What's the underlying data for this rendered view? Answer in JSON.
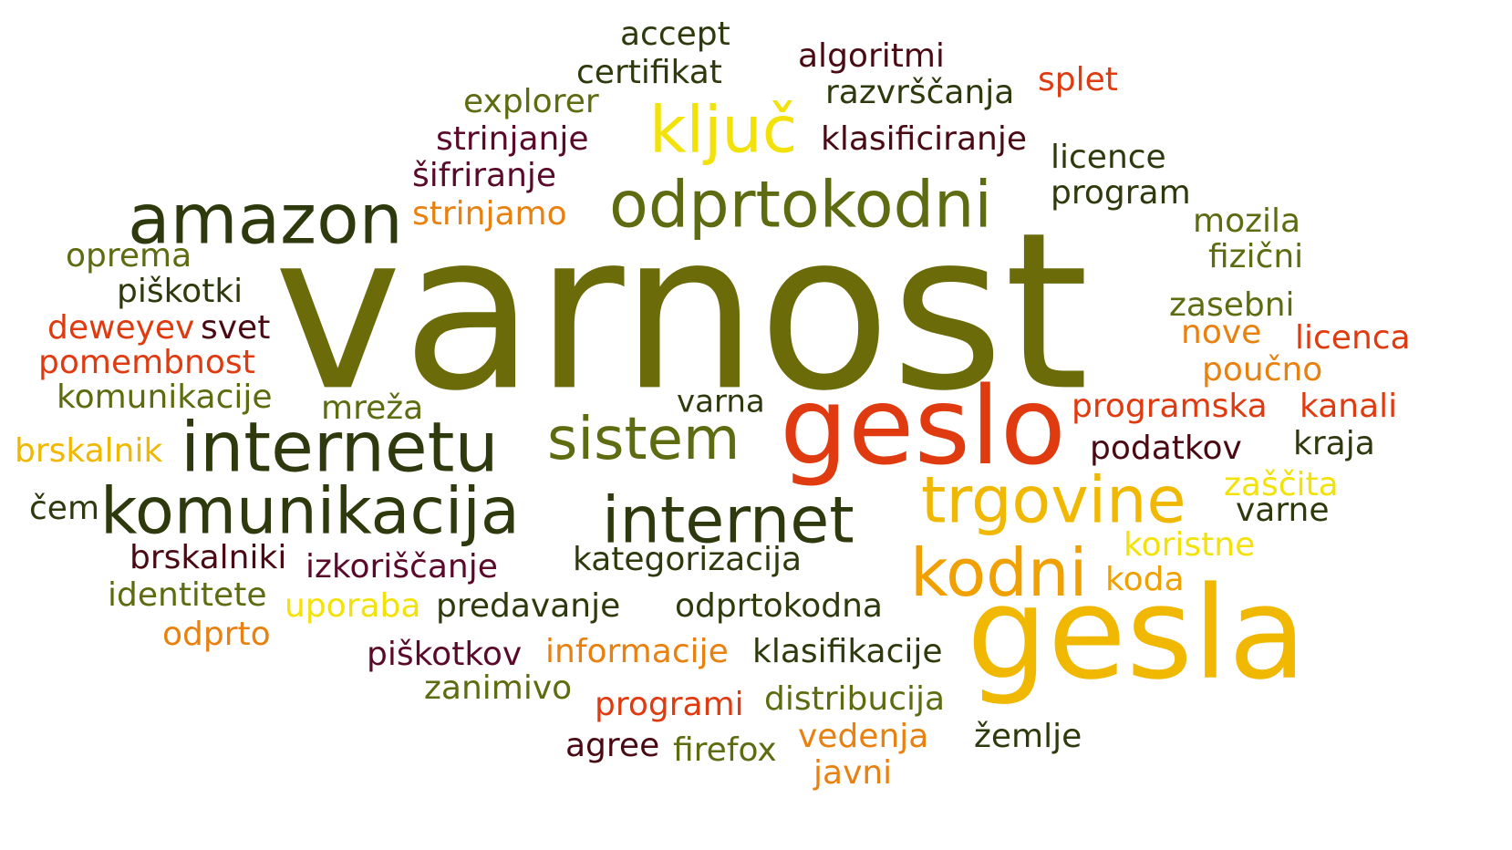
{
  "words": {
    "varnost": "varnost",
    "geslo": "geslo",
    "gesla": "gesla",
    "odprtokodni": "odprtokodni",
    "amazon": "amazon",
    "kljuc": "ključ",
    "internetu": "internetu",
    "komunikacija": "komunikacija",
    "internet": "internet",
    "sistem": "sistem",
    "trgovine": "trgovine",
    "kodni": "kodni",
    "accept": "accept",
    "certifikat": "certifikat",
    "algoritmi": "algoritmi",
    "razvrscanja": "razvrščanja",
    "splet": "splet",
    "explorer": "explorer",
    "strinjanje": "strinjanje",
    "klasificiranje": "klasificiranje",
    "licence": "licence",
    "sifriranje": "šifriranje",
    "program": "program",
    "strinjamo": "strinjamo",
    "mozila": "mozila",
    "oprema": "oprema",
    "fizicni": "fizični",
    "piskotki": "piškotki",
    "zasebni": "zasebni",
    "deweyev": "deweyev",
    "svet": "svet",
    "nove": "nove",
    "licenca": "licenca",
    "pomembnost": "pomembnost",
    "poucno": "poučno",
    "komunikacije": "komunikacije",
    "mreza": "mreža",
    "varna": "varna",
    "programska": "programska",
    "kanali": "kanali",
    "brskalnik": "brskalnik",
    "podatkov": "podatkov",
    "kraja": "kraja",
    "zascita": "zaščita",
    "cem": "čem",
    "varne": "varne",
    "koristne": "koristne",
    "brskalniki": "brskalniki",
    "izkoriscanje": "izkoriščanje",
    "kategorizacija": "kategorizacija",
    "koda": "koda",
    "identitete": "identitete",
    "uporaba": "uporaba",
    "predavanje": "predavanje",
    "odprtokodna": "odprtokodna",
    "odprto": "odprto",
    "piskotkov": "piškotkov",
    "informacije": "informacije",
    "klasifikacije": "klasifikacije",
    "zanimivo": "zanimivo",
    "programi": "programi",
    "distribucija": "distribucija",
    "vedenja": "vedenja",
    "agree": "agree",
    "firefox": "firefox",
    "zemlje": "žemlje",
    "javni": "javni"
  }
}
